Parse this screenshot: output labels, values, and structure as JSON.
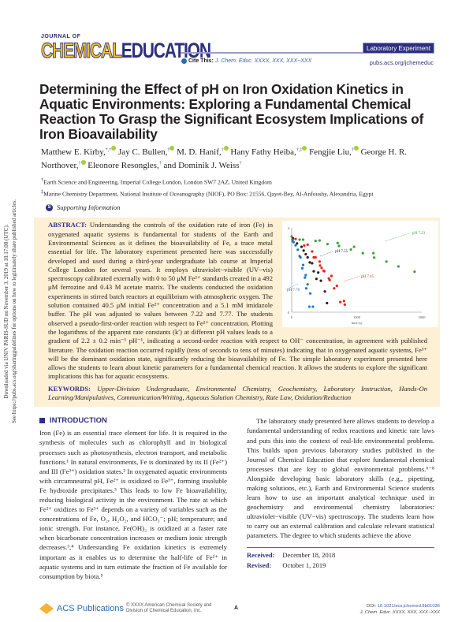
{
  "header": {
    "logo_top": "JOURNAL OF",
    "logo_chem": "CHEMICAL",
    "logo_edu": "EDUCATION",
    "article_type": "Laboratory Experiment",
    "cite_label": "Cite This:",
    "cite_ref": "J. Chem. Educ. XXXX, XXX, XXX−XXX",
    "journal_url": "pubs.acs.org/jchemeduc"
  },
  "side_notice": {
    "line1": "Downloaded via UNIV PARIS-SUD on November 3, 2019 at 18:17:08 (UTC).",
    "line2": "See https://pubs.acs.org/sharingguidelines for options on how to legitimately share published articles."
  },
  "title": "Determining the Effect of pH on Iron Oxidation Kinetics in Aquatic Environments: Exploring a Fundamental Chemical Reaction To Grasp the Significant Ecosystem Implications of Iron Bioavailability",
  "authors": [
    {
      "name": "Matthew E. Kirby,",
      "mark": "*,†",
      "orcid": true
    },
    {
      "name": "Jay C. Bullen,",
      "mark": "†",
      "orcid": true
    },
    {
      "name": "M. D. Hanif,",
      "mark": "†",
      "orcid": true
    },
    {
      "name": "Hany Fathy Heiba,",
      "mark": "†,‡",
      "orcid": true
    },
    {
      "name": "Fengjie Liu,",
      "mark": "†",
      "orcid": true
    },
    {
      "name": "George H. R. Northover,",
      "mark": "†",
      "orcid": true
    },
    {
      "name": "Eleonore Resongles,",
      "mark": "†",
      "orcid": false
    },
    {
      "name": "and Dominik J. Weiss",
      "mark": "†",
      "orcid": false
    }
  ],
  "affiliations": [
    {
      "mark": "†",
      "text": "Earth Science and Engineering, Imperial College London, London SW7 2AZ, United Kingdom"
    },
    {
      "mark": "‡",
      "text": "Marine Chemistry Department, National Institute of Oceanography (NIOF), PO Box: 21556, Qayet-Bey, Al-Anfoushy, Alexandria, Egypt"
    }
  ],
  "supporting_info": "Supporting Information",
  "abstract": {
    "label": "ABSTRACT:",
    "text": "Understanding the controls of the oxidation rate of iron (Fe) in oxygenated aquatic systems is fundamental for students of the Earth and Environmental Sciences as it defines the bioavailability of Fe, a trace metal essential for life. The laboratory experiment presented here was successfully developed and used during a third-year undergraduate lab course at Imperial College London for several years. It employs ultraviolet−visible (UV−vis) spectroscopy calibrated externally with 0 to 50 μM Fe²⁺ standards created in a 492 μM ferrozine and 0.43 M acetate matrix. The students conducted the oxidation experiments in stirred batch reactors at equilibrium with atmospheric oxygen. The solution contained 40.5 μM initial Fe²⁺ concentration and a 5.1 mM imidazole buffer. The pH was adjusted to values between 7.22 and 7.77. The students observed a pseudo-first-order reaction with respect to Fe²⁺ concentration. Plotting the logarithms of the apparent rate constants (k′) at different pH values leads to a gradient of 2.2 ± 0.2 min⁻¹ pH⁻¹, indicating a second-order reaction with respect to OH⁻ concentration, in agreement with published literature. The oxidation reaction occurred rapidly (tens of seconds to tens of minutes) indicating that in oxygenated aquatic systems, Fe³⁺ will be the dominant oxidation state, significantly reducing the bioavailability of Fe. The simple laboratory experiment presented here allows the students to learn about kinetic parameters for a fundamental chemical reaction. It allows the students to explore the significant implications this has for aquatic ecosystems.",
    "keywords_label": "KEYWORDS:",
    "keywords": "Upper-Division Undergraduate, Environmental Chemistry, Geochemistry, Laboratory Instruction, Hands-On Learning/Manipulatives, Communication/Writing, Aqueous Solution Chemistry, Rate Law, Oxidation/Reduction"
  },
  "chart_data": {
    "type": "scatter",
    "xlabel": "time (s)",
    "xlim": [
      0,
      2000
    ],
    "ylim": [
      0,
      4
    ],
    "x_ticks": [
      "0",
      "1000",
      "2000"
    ],
    "y_ticks": [
      "0",
      "4"
    ],
    "grid": false,
    "series": [
      {
        "name": "pH 7.23",
        "color": "#3aa335",
        "x": [
          0,
          122,
          176,
          367,
          429,
          551,
          706,
          727,
          910,
          959,
          1094,
          1257,
          1269,
          1457,
          1641,
          1890
        ],
        "y": [
          3.59,
          3.44,
          3.44,
          3.38,
          3.4,
          3.23,
          3.28,
          3.14,
          2.97,
          3.1,
          2.8,
          2.8,
          2.59,
          2.4,
          2.17,
          1.92
        ]
      },
      {
        "name": "pH 7.55",
        "color": "#222222",
        "x": [
          20,
          82,
          151,
          184,
          216,
          245,
          278,
          314,
          339,
          408,
          380,
          449,
          510,
          543
        ],
        "y": [
          3.5,
          3.26,
          3.1,
          2.92,
          2.75,
          2.6,
          2.36,
          2.32,
          1.94,
          1.88,
          1.58,
          1.49,
          0.98,
          0.43
        ]
      },
      {
        "name": "pH 7.45",
        "color": "#e8231f",
        "x": [
          12,
          61,
          192,
          245,
          314,
          339,
          367,
          429,
          437,
          461,
          490,
          502,
          571,
          584,
          612,
          653,
          694,
          747,
          804,
          816
        ],
        "y": [
          3.44,
          3.47,
          3.16,
          3.2,
          2.88,
          2.6,
          2.6,
          2.4,
          2.21,
          2.1,
          1.97,
          1.94,
          1.6,
          1.52,
          1.72,
          1.13,
          1.25,
          0.48,
          0.53,
          0.36
        ]
      },
      {
        "name": "pH 7.76",
        "color": "#1f77c0",
        "x": [
          12,
          29,
          61,
          94,
          122,
          135,
          163,
          176,
          216,
          204,
          245,
          224,
          286,
          273,
          327
        ],
        "y": [
          3.38,
          3.32,
          3.17,
          2.96,
          2.66,
          2.6,
          2.08,
          2.24,
          1.76,
          1.64,
          1.32,
          1.13,
          0.89,
          0.26,
          0.26
        ]
      }
    ]
  },
  "introduction": {
    "heading": "INTRODUCTION",
    "left": "Iron (Fe) is an essential trace element for life. It is required in the synthesis of molecules such as chlorophyll and in biological processes such as photosynthesis, electron transport, and metabolic functions.¹ In natural environments, Fe is dominated by its II (Fe²⁺) and III (Fe³⁺) oxidation states.² In oxygenated aquatic environments with circumneutral pH, Fe²⁺ is oxidized to Fe³⁺, forming insoluble Fe hydroxide precipitates.³ This leads to low Fe bioavailability, reducing biological activity in the environment. The rate at which Fe²⁺ oxidizes to Fe³⁺ depends on a variety of variables such as the concentrations of Fe, O₂, H₂O₂, and HCO₃⁻; pH; temperature; and ionic strength. For instance, Fe(OH)₂ is oxidized at a faster rate when bicarbonate concentration increases or medium ionic strength decreases.³,⁴ Understanding Fe oxidation kinetics is extremely important as it enables us to determine the half-life of Fe²⁺ in aquatic systems and in turn estimate the fraction of Fe available for consumption by biota.⁵",
    "right": "The laboratory study presented here allows students to develop a fundamental understanding of redox reactions and kinetic rate laws and puts this into the context of real-life environmental problems. This builds upon previous laboratory studies published in the Journal of Chemical Education that explore fundamental chemical processes that are key to global environmental problems.⁶⁻⁸ Alongside developing basic laboratory skills (e.g., pipetting, making solutions, etc.), Earth and Environmental Science students learn how to use an important analytical technique used in geochemistry and environmental chemistry laboratories: ultraviolet−visible (UV−vis) spectroscopy. The students learn how to carry out an external calibration and calculate relevant statistical parameters. The degree to which students achieve the above"
  },
  "dates": {
    "received_label": "Received:",
    "received": "December 18, 2018",
    "revised_label": "Revised:",
    "revised": "October 1, 2019"
  },
  "footer": {
    "publisher": "ACS Publications",
    "copyright_line1": "© XXXX American Chemical Society and",
    "copyright_line2": "Division of Chemical Education, Inc.",
    "page": "A",
    "doi_label": "DOI:",
    "doi": "10.1021/acs.jchemed.8b01036",
    "citation": "J. Chem. Educ. XXXX, XXX, XXX−XXX"
  }
}
